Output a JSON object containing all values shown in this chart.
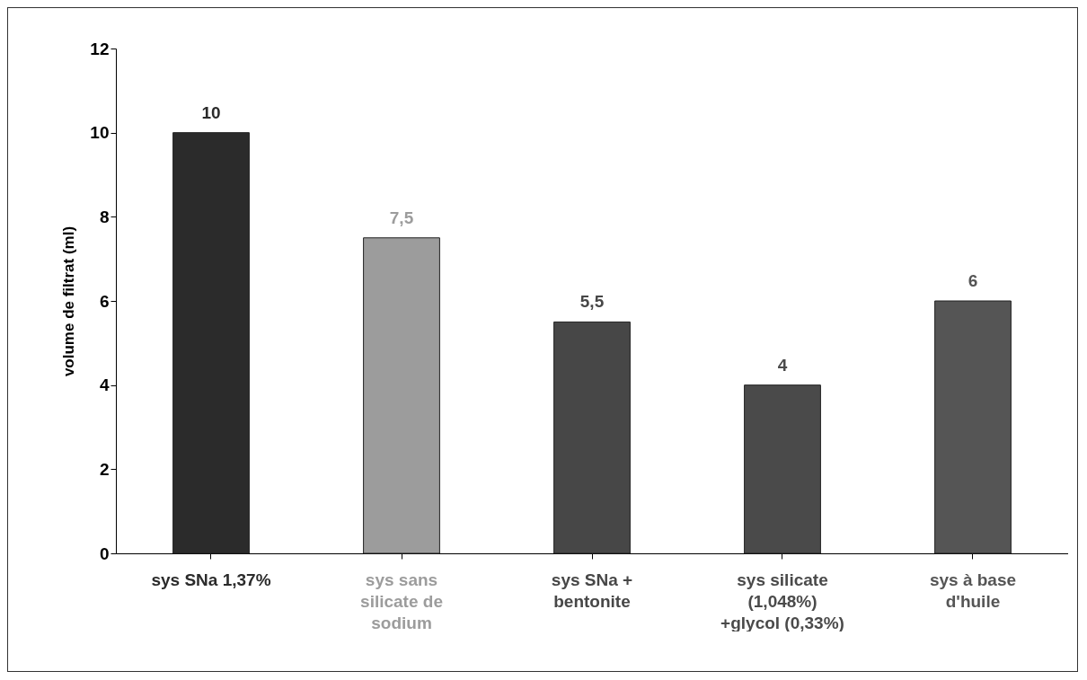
{
  "chart_data": {
    "type": "bar",
    "ylabel": "volume de filtrat (ml)",
    "categories": [
      "sys SNa 1,37%",
      "sys sans silicate de sodium",
      "sys SNa + bentonite",
      "sys silicate (1,048%) +glycol (0,33%)",
      "sys à base d'huile"
    ],
    "values": [
      10,
      7.5,
      5.5,
      4,
      6
    ],
    "value_labels": [
      "10",
      "7,5",
      "5,5",
      "4",
      "6"
    ],
    "colors": [
      "#2b2b2b",
      "#9c9c9c",
      "#474747",
      "#4a4a4a",
      "#555555"
    ],
    "ylim": [
      0,
      12
    ],
    "yticks": [
      0,
      2,
      4,
      6,
      8,
      10,
      12
    ]
  }
}
